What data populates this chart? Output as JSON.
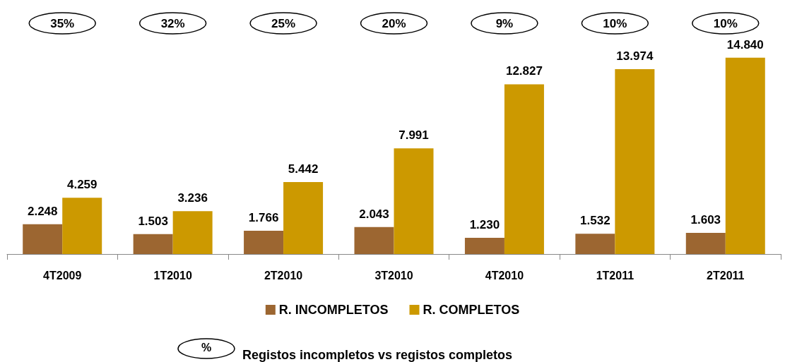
{
  "chart_data": {
    "type": "bar",
    "categories": [
      "4T2009",
      "1T2010",
      "2T2010",
      "3T2010",
      "4T2010",
      "1T2011",
      "2T2011"
    ],
    "series": [
      {
        "name": "R. INCOMPLETOS",
        "color": "#9c6631",
        "values": [
          2248,
          1503,
          1766,
          2043,
          1230,
          1532,
          1603
        ],
        "value_labels": [
          "2.248",
          "1.503",
          "1.766",
          "2.043",
          "1.230",
          "1.532",
          "1.603"
        ]
      },
      {
        "name": "R. COMPLETOS",
        "color": "#cc9900",
        "values": [
          4259,
          3236,
          5442,
          7991,
          12827,
          13974,
          14840
        ],
        "value_labels": [
          "4.259",
          "3.236",
          "5.442",
          "7.991",
          "12.827",
          "13.974",
          "14.840"
        ]
      }
    ],
    "annotations": [
      "35%",
      "32%",
      "25%",
      "20%",
      "9%",
      "10%",
      "10%",
      "%",
      "Registos incompletos vs registos completos"
    ],
    "legend": "bottom",
    "grid": false
  }
}
